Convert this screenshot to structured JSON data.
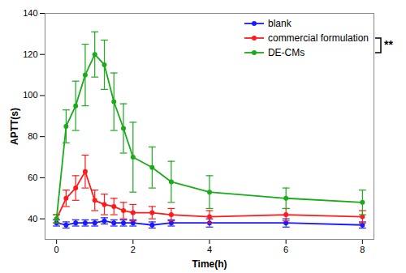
{
  "chart_data": {
    "type": "line",
    "x": [
      0,
      0.25,
      0.5,
      0.75,
      1.0,
      1.25,
      1.5,
      1.75,
      2.0,
      2.5,
      3.0,
      4.0,
      6.0,
      8.0
    ],
    "xlabel": "Time(h)",
    "ylabel": "APTT(s)",
    "xlim": [
      -0.3,
      8.3
    ],
    "xticks": [
      0,
      2,
      4,
      6,
      8
    ],
    "ylim": [
      30,
      140
    ],
    "yticks": [
      40,
      60,
      80,
      100,
      120,
      140
    ],
    "series": [
      {
        "name": "blank",
        "color": "#1a1aff",
        "values": [
          38,
          37,
          38,
          38,
          38,
          39,
          38,
          38,
          38,
          37,
          38,
          38,
          38,
          37
        ],
        "errors": [
          1.5,
          1.5,
          1.5,
          1.5,
          1.5,
          1.5,
          1.5,
          1.5,
          1.5,
          1.5,
          1.5,
          2,
          2,
          1.5
        ]
      },
      {
        "name": "commercial formulation",
        "color": "#ff1a1a",
        "values": [
          40,
          50,
          55,
          63,
          49,
          47,
          46,
          44,
          43,
          43,
          42,
          41,
          42,
          41
        ],
        "errors": [
          2,
          4,
          6,
          8,
          5,
          5,
          4,
          4,
          4,
          3,
          3,
          3,
          3,
          3
        ]
      },
      {
        "name": "DE-CMs",
        "color": "#1aaa1a",
        "values": [
          40,
          85,
          95,
          110,
          120,
          115,
          97,
          84,
          70,
          65,
          58,
          53,
          50,
          48
        ],
        "errors": [
          2,
          8,
          12,
          15,
          11,
          12,
          14,
          12,
          17,
          10,
          10,
          8,
          5,
          6
        ]
      }
    ],
    "marker": "circle",
    "legend": "upper right",
    "grid": false,
    "annotations": [
      "**"
    ]
  }
}
